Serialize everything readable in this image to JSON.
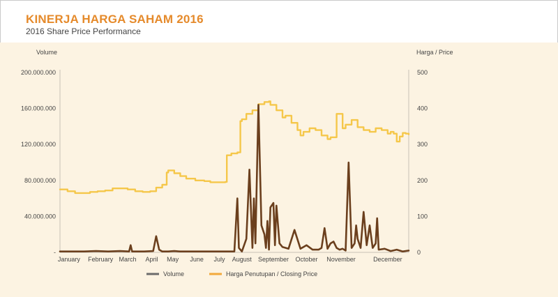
{
  "header": {
    "title": "KINERJA HARGA SAHAM 2016",
    "subtitle": "2016 Share Price Performance"
  },
  "colors": {
    "accent": "#e58a2b",
    "volume": "#6b3f1d",
    "price": "#f5c74a",
    "panel": "#fcf3e2",
    "axis": "#c8c2b6"
  },
  "chart_data": {
    "type": "line",
    "title": "KINERJA HARGA SAHAM 2016",
    "subtitle": "2016 Share Price Performance",
    "y_left_label": "Volume",
    "y_right_label": "Harga / Price",
    "y_left_range": [
      0,
      200000000
    ],
    "y_right_range": [
      0,
      500
    ],
    "y_left_ticks": [
      "-",
      "40.000.000",
      "80.000.000",
      "120.000.000",
      "160.000.000",
      "200.000.000"
    ],
    "y_left_tick_values": [
      0,
      40000000,
      80000000,
      120000000,
      160000000,
      200000000
    ],
    "y_right_ticks": [
      "0",
      "100",
      "200",
      "300",
      "400",
      "500"
    ],
    "y_right_tick_values": [
      0,
      100,
      200,
      300,
      400,
      500
    ],
    "x_range": [
      0,
      11.6
    ],
    "x_ticks": [
      "January",
      "February",
      "March",
      "April",
      "May",
      "June",
      "July",
      "August",
      "September",
      "October",
      "November",
      "December"
    ],
    "x_tick_values": [
      0.3,
      1.35,
      2.25,
      3.05,
      3.75,
      4.55,
      5.3,
      6.05,
      7.1,
      8.2,
      9.35,
      10.9
    ],
    "legend_position": "bottom",
    "grid": false,
    "series": [
      {
        "name": "Volume",
        "axis": "left",
        "x": [
          0.0,
          0.4,
          0.8,
          1.2,
          1.6,
          2.0,
          2.3,
          2.35,
          2.4,
          2.8,
          3.1,
          3.2,
          3.3,
          3.4,
          3.6,
          3.8,
          4.0,
          4.4,
          4.8,
          5.2,
          5.6,
          5.8,
          5.9,
          5.95,
          6.05,
          6.2,
          6.3,
          6.4,
          6.45,
          6.5,
          6.6,
          6.7,
          6.8,
          6.85,
          6.9,
          6.95,
          7.0,
          7.1,
          7.15,
          7.2,
          7.3,
          7.4,
          7.6,
          7.8,
          8.0,
          8.2,
          8.4,
          8.6,
          8.7,
          8.8,
          8.9,
          9.0,
          9.1,
          9.2,
          9.3,
          9.4,
          9.5,
          9.6,
          9.7,
          9.8,
          9.85,
          9.9,
          10.0,
          10.1,
          10.2,
          10.3,
          10.4,
          10.5,
          10.55,
          10.6,
          10.8,
          11.0,
          11.2,
          11.4,
          11.6
        ],
        "values": [
          1000000,
          1000000,
          1000000,
          1500000,
          1000000,
          1500000,
          1000000,
          8000000,
          1000000,
          1000000,
          1500000,
          18000000,
          3000000,
          1000000,
          1000000,
          1500000,
          1000000,
          1000000,
          1000000,
          1000000,
          1000000,
          1000000,
          60000000,
          5000000,
          1000000,
          15000000,
          92000000,
          5000000,
          60000000,
          10000000,
          164000000,
          30000000,
          20000000,
          5000000,
          35000000,
          3000000,
          50000000,
          55000000,
          8000000,
          52000000,
          10000000,
          6000000,
          4000000,
          25000000,
          4000000,
          8000000,
          3000000,
          3000000,
          5000000,
          27000000,
          4000000,
          10000000,
          12000000,
          5000000,
          3000000,
          4000000,
          2000000,
          100000000,
          5000000,
          10000000,
          30000000,
          15000000,
          5000000,
          45000000,
          8000000,
          30000000,
          5000000,
          10000000,
          38000000,
          3000000,
          4000000,
          1500000,
          3000000,
          1000000,
          2000000
        ]
      },
      {
        "name": "Harga Penutupan / Closing Price",
        "axis": "right",
        "x": [
          0.0,
          0.25,
          0.5,
          0.75,
          1.0,
          1.25,
          1.5,
          1.75,
          2.0,
          2.25,
          2.5,
          2.75,
          3.0,
          3.2,
          3.4,
          3.55,
          3.6,
          3.8,
          4.0,
          4.2,
          4.5,
          4.8,
          5.0,
          5.2,
          5.4,
          5.5,
          5.55,
          5.7,
          5.9,
          6.0,
          6.05,
          6.2,
          6.4,
          6.6,
          6.8,
          6.95,
          7.0,
          7.2,
          7.4,
          7.5,
          7.7,
          7.9,
          8.0,
          8.1,
          8.3,
          8.5,
          8.7,
          8.9,
          9.0,
          9.2,
          9.4,
          9.5,
          9.7,
          9.9,
          10.1,
          10.3,
          10.5,
          10.7,
          10.9,
          11.0,
          11.1,
          11.2,
          11.3,
          11.4,
          11.5,
          11.6
        ],
        "values": [
          175,
          170,
          165,
          165,
          168,
          170,
          172,
          178,
          178,
          175,
          170,
          168,
          170,
          180,
          188,
          222,
          228,
          220,
          212,
          205,
          200,
          198,
          195,
          195,
          195,
          196,
          270,
          275,
          278,
          365,
          370,
          385,
          395,
          412,
          418,
          420,
          410,
          395,
          375,
          380,
          360,
          340,
          325,
          335,
          345,
          340,
          325,
          315,
          320,
          385,
          345,
          355,
          368,
          348,
          340,
          335,
          345,
          340,
          330,
          335,
          330,
          308,
          322,
          332,
          330,
          328
        ]
      }
    ]
  },
  "legend": {
    "items": [
      {
        "label": "Volume",
        "color": "#6b6b6b"
      },
      {
        "label": "Harga Penutupan / Closing Price",
        "color": "#f2a93b"
      }
    ]
  }
}
